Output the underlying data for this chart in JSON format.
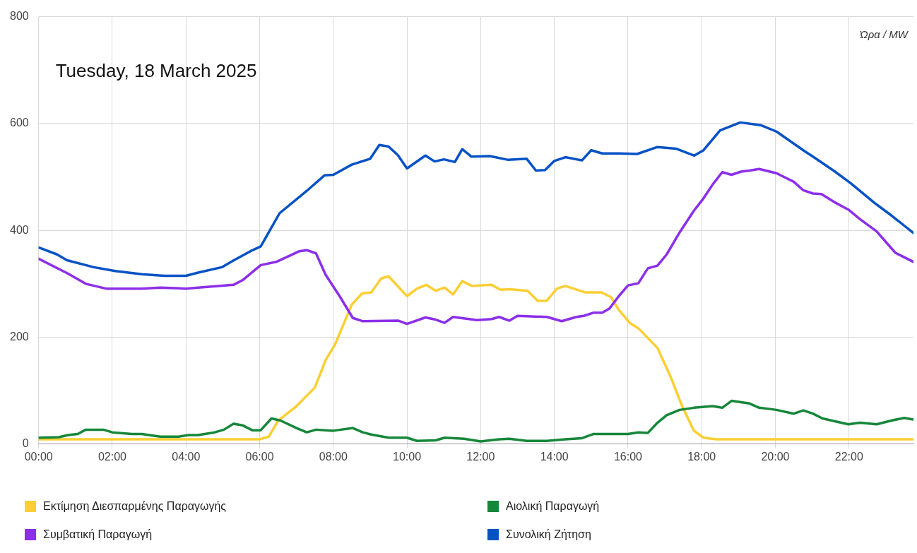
{
  "chart_data": {
    "type": "line",
    "title": "Tuesday, 18 March 2025",
    "ylabel": "Ώρα / MW",
    "xlim": [
      0,
      23.75
    ],
    "xticks": [
      {
        "value": 0,
        "label": "00:00"
      },
      {
        "value": 2,
        "label": "02:00"
      },
      {
        "value": 4,
        "label": "04:00"
      },
      {
        "value": 6,
        "label": "06:00"
      },
      {
        "value": 8,
        "label": "08:00"
      },
      {
        "value": 10,
        "label": "10:00"
      },
      {
        "value": 12,
        "label": "12:00"
      },
      {
        "value": 14,
        "label": "14:00"
      },
      {
        "value": 16,
        "label": "16:00"
      },
      {
        "value": 18,
        "label": "18:00"
      },
      {
        "value": 20,
        "label": "20:00"
      },
      {
        "value": 22,
        "label": "22:00"
      }
    ],
    "ylim": [
      0,
      800
    ],
    "yticks": [
      0,
      200,
      400,
      600,
      800
    ],
    "grid": true,
    "legend": "bottom",
    "marker": "none",
    "line_style": "solid",
    "series": [
      {
        "name": "Εκτίμηση Διεσπαρμένης Παραγωγής",
        "color": "#fbcf33",
        "x": [
          0,
          6,
          6.25,
          6.5,
          7,
          7.5,
          7.79,
          8.05,
          8.5,
          8.78,
          9.03,
          9.3,
          9.5,
          10,
          10.27,
          10.52,
          10.78,
          11.02,
          11.25,
          11.5,
          11.76,
          12.3,
          12.54,
          12.78,
          13.27,
          13.55,
          13.79,
          14.07,
          14.3,
          14.83,
          15.28,
          15.54,
          15.74,
          16.06,
          16.28,
          16.8,
          17.15,
          17.47,
          17.79,
          18.05,
          18.4,
          23.75
        ],
        "values": [
          9,
          9,
          14,
          44,
          71,
          106,
          157,
          187,
          261,
          282,
          284,
          310,
          314,
          277,
          291,
          298,
          287,
          293,
          280,
          305,
          296,
          298,
          289,
          290,
          287,
          268,
          268,
          291,
          296,
          284,
          284,
          275,
          252,
          226,
          217,
          180,
          127,
          71,
          25,
          12,
          9,
          9
        ]
      },
      {
        "name": "Αιολική Παραγωγή",
        "color": "#16873a",
        "x": [
          0,
          0.55,
          0.8,
          1.06,
          1.28,
          1.76,
          2,
          2.53,
          2.8,
          3.3,
          3.81,
          4.07,
          4.33,
          4.78,
          5.03,
          5.29,
          5.54,
          5.8,
          6.03,
          6.32,
          6.57,
          7,
          7.28,
          7.53,
          8,
          8.53,
          8.8,
          9.03,
          9.5,
          10,
          10.27,
          10.78,
          11.02,
          11.55,
          12,
          12.5,
          12.78,
          13.25,
          13.8,
          14.3,
          14.75,
          15.07,
          15.54,
          16,
          16.28,
          16.54,
          16.8,
          17.05,
          17.4,
          17.79,
          18.3,
          18.56,
          18.81,
          19.3,
          19.56,
          19.82,
          20.03,
          20.5,
          20.76,
          21.02,
          21.28,
          21.98,
          22.3,
          22.75,
          23.15,
          23.5,
          23.75
        ],
        "values": [
          12,
          13,
          17,
          19,
          27,
          27,
          22,
          19,
          19,
          14,
          14,
          17,
          17,
          22,
          27,
          38,
          35,
          26,
          26,
          48,
          44,
          30,
          22,
          27,
          25,
          30,
          22,
          18,
          12,
          12,
          6,
          7,
          12,
          10,
          5,
          9,
          10,
          6,
          6,
          9,
          11,
          19,
          19,
          19,
          22,
          21,
          40,
          54,
          64,
          68,
          71,
          68,
          81,
          76,
          68,
          66,
          64,
          57,
          63,
          57,
          48,
          37,
          40,
          37,
          44,
          49,
          46
        ]
      },
      {
        "name": "Συμβατική Παραγωγή",
        "color": "#8c2fe8",
        "x": [
          0,
          0.8,
          1.28,
          1.83,
          2.8,
          3.3,
          4,
          4.33,
          5.29,
          5.54,
          6.03,
          6.45,
          7.08,
          7.28,
          7.53,
          7.79,
          8.17,
          8.53,
          8.8,
          9.77,
          10,
          10.5,
          10.78,
          11.02,
          11.25,
          11.9,
          12.3,
          12.5,
          12.78,
          13,
          13.8,
          14.2,
          14.6,
          14.8,
          15.07,
          15.3,
          15.5,
          15.74,
          16,
          16.28,
          16.54,
          16.8,
          17.05,
          17.4,
          17.79,
          18.05,
          18.3,
          18.56,
          18.81,
          19.07,
          19.3,
          19.56,
          20.03,
          20.5,
          20.76,
          21.02,
          21.25,
          21.6,
          21.98,
          22.3,
          22.75,
          23.26,
          23.75
        ],
        "values": [
          347,
          319,
          300,
          291,
          291,
          293,
          291,
          293,
          298,
          307,
          335,
          341,
          361,
          363,
          357,
          317,
          277,
          236,
          230,
          231,
          225,
          237,
          233,
          227,
          238,
          232,
          234,
          238,
          231,
          240,
          238,
          230,
          238,
          240,
          246,
          246,
          254,
          276,
          297,
          301,
          329,
          334,
          355,
          396,
          437,
          460,
          486,
          509,
          504,
          510,
          512,
          515,
          507,
          491,
          475,
          469,
          468,
          453,
          439,
          421,
          398,
          358,
          341
        ]
      },
      {
        "name": "Συνολική Ζήτηση",
        "color": "#0652c5",
        "x": [
          0,
          0.5,
          0.77,
          1.5,
          2.08,
          2.8,
          3.4,
          4,
          4.33,
          4.97,
          5.3,
          5.75,
          6.03,
          6.54,
          7.28,
          7.76,
          8,
          8.5,
          9,
          9.25,
          9.5,
          9.75,
          10,
          10.5,
          10.75,
          11,
          11.3,
          11.5,
          11.75,
          12.25,
          12.75,
          13.25,
          13.5,
          13.75,
          14,
          14.3,
          14.75,
          15,
          15.3,
          15.75,
          16.25,
          16.8,
          17.3,
          17.8,
          18.05,
          18.5,
          19.05,
          19.6,
          20.03,
          20.8,
          21,
          21.6,
          22.05,
          22.7,
          23.15,
          23.75
        ],
        "values": [
          368,
          355,
          344,
          331,
          324,
          318,
          315,
          315,
          321,
          331,
          344,
          361,
          370,
          432,
          474,
          503,
          504,
          523,
          534,
          560,
          557,
          541,
          516,
          540,
          529,
          533,
          528,
          552,
          538,
          539,
          532,
          534,
          512,
          513,
          530,
          537,
          531,
          550,
          544,
          544,
          543,
          556,
          553,
          540,
          550,
          587,
          602,
          597,
          585,
          548,
          539,
          511,
          488,
          451,
          428,
          395
        ]
      }
    ]
  }
}
